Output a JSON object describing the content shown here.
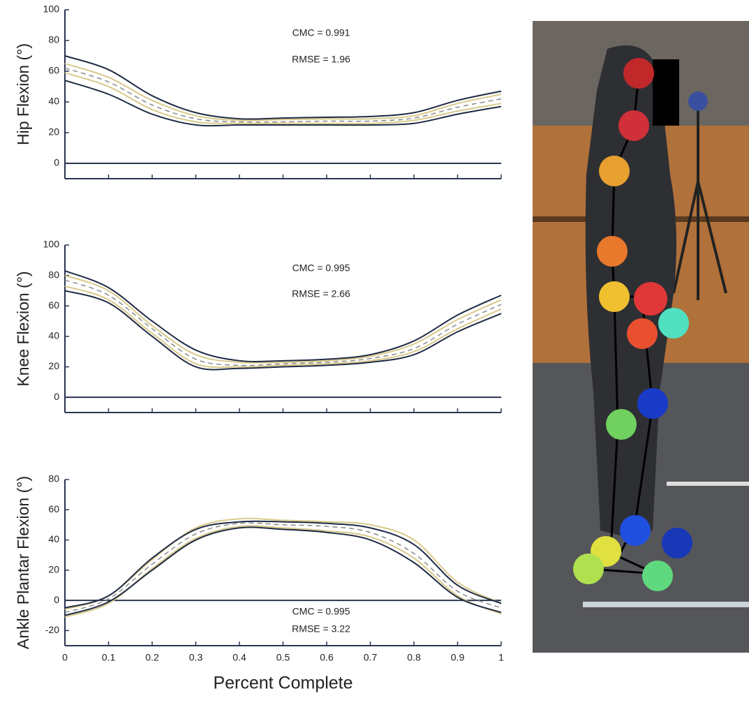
{
  "chart_data": [
    {
      "type": "line",
      "ylabel": "Hip Flexion (°)",
      "annotations": [
        "CMC = 0.991",
        "RMSE = 1.96"
      ],
      "x": [
        0,
        0.1,
        0.2,
        0.3,
        0.4,
        0.5,
        0.6,
        0.7,
        0.8,
        0.9,
        1
      ],
      "xlim": [
        0,
        1
      ],
      "xticks": [
        0,
        0.1,
        0.2,
        0.3,
        0.4,
        0.5,
        0.6,
        0.7,
        0.8,
        0.9,
        1
      ],
      "xtick_labels": false,
      "ylim": [
        -10,
        100
      ],
      "yticks": [
        0,
        20,
        40,
        60,
        80,
        100
      ],
      "zero_line": true,
      "series": [
        {
          "color": "#d8c98a",
          "values": [
            65,
            56,
            41,
            31,
            28,
            28.5,
            29,
            29,
            31,
            39,
            45
          ]
        },
        {
          "color": "#d8c98a",
          "values": [
            59,
            50,
            35,
            27,
            26,
            26,
            26,
            26,
            28,
            34,
            39
          ]
        },
        {
          "color": "#8a8a8a",
          "dashed": true,
          "values": [
            62,
            53,
            38,
            29,
            27,
            27,
            27.5,
            27.5,
            29.5,
            36.5,
            42
          ]
        },
        {
          "color": "#1f2a44",
          "values": [
            70,
            61,
            44,
            33,
            29,
            29.5,
            30,
            30.5,
            33,
            41,
            47
          ]
        },
        {
          "color": "#1f2a44",
          "values": [
            54,
            45,
            32,
            25,
            25,
            25,
            25,
            25,
            26,
            32,
            37
          ]
        }
      ]
    },
    {
      "type": "line",
      "ylabel": "Knee Flexion (°)",
      "annotations": [
        "CMC = 0.995",
        "RMSE = 2.66"
      ],
      "x": [
        0,
        0.1,
        0.2,
        0.3,
        0.4,
        0.5,
        0.6,
        0.7,
        0.8,
        0.9,
        1
      ],
      "xlim": [
        0,
        1
      ],
      "xticks": [
        0,
        0.1,
        0.2,
        0.3,
        0.4,
        0.5,
        0.6,
        0.7,
        0.8,
        0.9,
        1
      ],
      "xtick_labels": false,
      "ylim": [
        -10,
        100
      ],
      "yticks": [
        0,
        20,
        40,
        60,
        80,
        100
      ],
      "zero_line": true,
      "series": [
        {
          "color": "#d8c98a",
          "values": [
            80,
            70,
            47,
            28,
            23,
            23,
            24,
            27,
            35,
            51,
            64
          ]
        },
        {
          "color": "#d8c98a",
          "values": [
            73,
            64,
            42,
            22,
            20,
            21,
            22,
            24,
            30,
            45,
            58
          ]
        },
        {
          "color": "#8a8a8a",
          "dashed": true,
          "values": [
            77,
            67,
            45,
            25,
            21,
            22,
            23,
            25.5,
            32,
            48,
            61
          ]
        },
        {
          "color": "#1f2a44",
          "values": [
            83,
            72,
            50,
            31,
            24,
            24,
            25,
            28,
            37,
            54,
            67
          ]
        },
        {
          "color": "#1f2a44",
          "values": [
            70,
            62,
            40,
            20,
            19,
            20,
            21,
            23,
            28,
            43,
            55
          ]
        }
      ]
    },
    {
      "type": "line",
      "ylabel": "Ankle Plantar Flexion (°)",
      "xlabel": "Percent Complete",
      "annotations": [
        "CMC = 0.995",
        "RMSE = 3.22"
      ],
      "x": [
        0,
        0.1,
        0.2,
        0.3,
        0.4,
        0.5,
        0.6,
        0.7,
        0.8,
        0.9,
        1
      ],
      "xlim": [
        0,
        1
      ],
      "xticks": [
        0,
        0.1,
        0.2,
        0.3,
        0.4,
        0.5,
        0.6,
        0.7,
        0.8,
        0.9,
        1
      ],
      "xtick_labels": true,
      "ylim": [
        -30,
        80
      ],
      "yticks": [
        -20,
        0,
        20,
        40,
        60,
        80
      ],
      "zero_line": true,
      "series": [
        {
          "color": "#d8c98a",
          "values": [
            -6,
            3,
            27,
            48,
            54,
            53,
            52,
            50,
            40,
            12,
            -2
          ]
        },
        {
          "color": "#d8c98a",
          "values": [
            -11,
            -2,
            21,
            41,
            49,
            48,
            46,
            42,
            28,
            3,
            -9
          ]
        },
        {
          "color": "#8a8a8a",
          "dashed": true,
          "values": [
            -8,
            1,
            24,
            44,
            51,
            50,
            49,
            45,
            31,
            6,
            -5
          ]
        },
        {
          "color": "#1f2a44",
          "values": [
            -5,
            3,
            28,
            47,
            52,
            52,
            51,
            48,
            37,
            10,
            -2
          ]
        },
        {
          "color": "#1f2a44",
          "values": [
            -10,
            -1,
            20,
            40,
            48,
            47,
            45,
            40,
            25,
            2,
            -8
          ]
        }
      ]
    }
  ]
}
